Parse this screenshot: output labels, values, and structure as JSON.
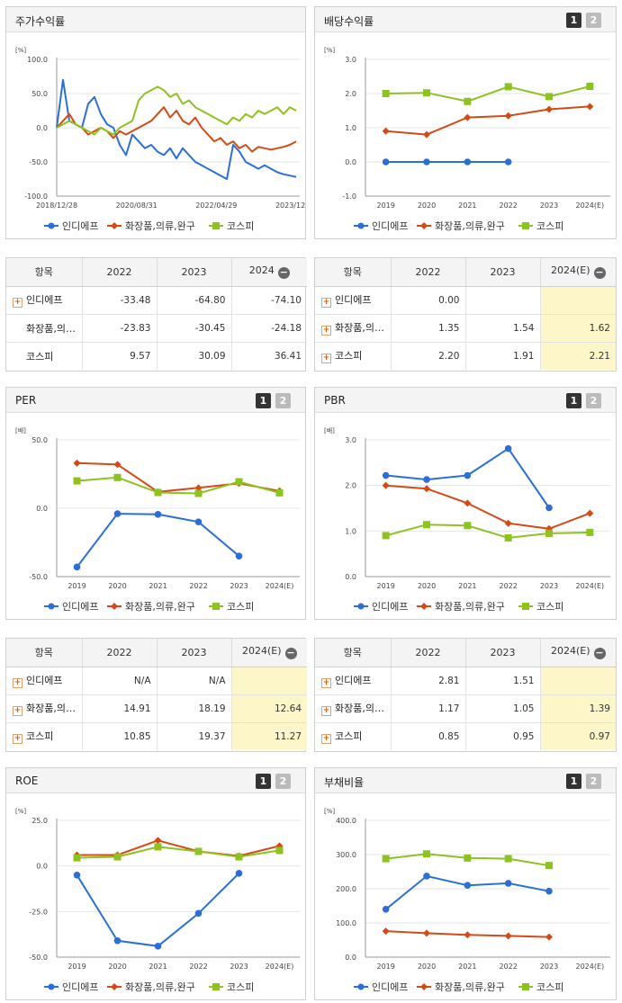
{
  "legend": [
    "인디에프",
    "화장품,의류,완구",
    "코스피"
  ],
  "colors": {
    "s0": "#2b6fd6",
    "s1": "#d44a16",
    "s2": "#8dc21f"
  },
  "pager": {
    "one": "1",
    "two": "2"
  },
  "charts": {
    "stock": {
      "title": "주가수익률",
      "chart_data": {
        "type": "line",
        "unit": "[%]",
        "y_ticks": [
          "100.0",
          "50.0",
          "0.0",
          "-50.0",
          "-100.0"
        ],
        "ylim": [
          -100,
          100
        ],
        "x_tick_labels": [
          "2018/12/28",
          "2020/08/31",
          "2022/04/29",
          "2023/12/28"
        ],
        "series": [
          {
            "name": "인디에프",
            "values": [
              0,
              70,
              10,
              5,
              0,
              35,
              45,
              20,
              5,
              0,
              -25,
              -40,
              -10,
              -20,
              -30,
              -25,
              -35,
              -40,
              -30,
              -45,
              -30,
              -40,
              -50,
              -55,
              -60,
              -65,
              -70,
              -75,
              -25,
              -35,
              -50,
              -55,
              -60,
              -55,
              -60,
              -65,
              -68,
              -70,
              -72
            ]
          },
          {
            "name": "화장품,의류,완구",
            "values": [
              0,
              10,
              20,
              5,
              0,
              -10,
              -5,
              0,
              -5,
              -15,
              -5,
              -10,
              -5,
              0,
              5,
              10,
              20,
              30,
              15,
              25,
              10,
              5,
              15,
              0,
              -10,
              -20,
              -15,
              -25,
              -20,
              -30,
              -25,
              -35,
              -28,
              -30,
              -32,
              -30,
              -28,
              -25,
              -20
            ]
          },
          {
            "name": "코스피",
            "values": [
              0,
              5,
              10,
              5,
              0,
              -5,
              -10,
              0,
              -5,
              -10,
              0,
              5,
              10,
              40,
              50,
              55,
              60,
              55,
              45,
              50,
              35,
              40,
              30,
              25,
              20,
              15,
              10,
              5,
              15,
              10,
              20,
              15,
              25,
              20,
              25,
              30,
              20,
              30,
              25
            ]
          }
        ]
      }
    },
    "dividend": {
      "title": "배당수익률",
      "chart_data": {
        "type": "line",
        "unit": "[%]",
        "y_ticks": [
          "3.0",
          "2.0",
          "1.0",
          "0.0",
          "-1.0"
        ],
        "ylim": [
          -1,
          3
        ],
        "categories": [
          "2019",
          "2020",
          "2021",
          "2022",
          "2023",
          "2024(E)"
        ],
        "series": [
          {
            "name": "인디에프",
            "values": [
              0.0,
              0.0,
              0.0,
              0.0,
              null,
              null
            ]
          },
          {
            "name": "화장품,의류,완구",
            "values": [
              0.9,
              0.8,
              1.3,
              1.35,
              1.54,
              1.62
            ]
          },
          {
            "name": "코스피",
            "values": [
              2.0,
              2.02,
              1.77,
              2.2,
              1.91,
              2.21
            ]
          }
        ]
      }
    },
    "per": {
      "title": "PER",
      "chart_data": {
        "type": "line",
        "unit": "[배]",
        "y_ticks": [
          "50.0",
          "0.0",
          "-50.0"
        ],
        "ylim": [
          -50,
          50
        ],
        "categories": [
          "2019",
          "2020",
          "2021",
          "2022",
          "2023",
          "2024(E)"
        ],
        "series": [
          {
            "name": "인디에프",
            "values": [
              -43,
              -4,
              -4.5,
              -10,
              -35,
              null
            ]
          },
          {
            "name": "화장품,의류,완구",
            "values": [
              33,
              32,
              12,
              14.91,
              18.19,
              12.64
            ]
          },
          {
            "name": "코스피",
            "values": [
              20,
              22.5,
              11.5,
              10.85,
              19.37,
              11.27
            ]
          }
        ]
      }
    },
    "pbr": {
      "title": "PBR",
      "chart_data": {
        "type": "line",
        "unit": "[배]",
        "y_ticks": [
          "3.0",
          "2.0",
          "1.0",
          "0.0"
        ],
        "ylim": [
          0,
          3
        ],
        "categories": [
          "2019",
          "2020",
          "2021",
          "2022",
          "2023",
          "2024(E)"
        ],
        "series": [
          {
            "name": "인디에프",
            "values": [
              2.22,
              2.13,
              2.22,
              2.81,
              1.51,
              null
            ]
          },
          {
            "name": "화장품,의류,완구",
            "values": [
              2.0,
              1.93,
              1.61,
              1.17,
              1.05,
              1.39
            ]
          },
          {
            "name": "코스피",
            "values": [
              0.9,
              1.14,
              1.12,
              0.85,
              0.95,
              0.97
            ]
          }
        ]
      }
    },
    "roe": {
      "title": "ROE",
      "chart_data": {
        "type": "line",
        "unit": "[%]",
        "y_ticks": [
          "25.0",
          "0.0",
          "-25.0",
          "-50.0"
        ],
        "ylim": [
          -50,
          25
        ],
        "categories": [
          "2019",
          "2020",
          "2021",
          "2022",
          "2023",
          "2024(E)"
        ],
        "series": [
          {
            "name": "인디에프",
            "values": [
              -5,
              -41,
              -44,
              -26,
              -4,
              null
            ]
          },
          {
            "name": "화장품,의류,완구",
            "values": [
              6,
              6,
              14,
              8,
              5.5,
              11
            ]
          },
          {
            "name": "코스피",
            "values": [
              4.5,
              5,
              10.5,
              8,
              5,
              8.5
            ]
          }
        ]
      }
    },
    "debt": {
      "title": "부채비율",
      "chart_data": {
        "type": "line",
        "unit": "[%]",
        "y_ticks": [
          "400.0",
          "300.0",
          "200.0",
          "100.0",
          "0.0"
        ],
        "ylim": [
          0,
          400
        ],
        "categories": [
          "2019",
          "2020",
          "2021",
          "2022",
          "2023",
          "2024(E)"
        ],
        "series": [
          {
            "name": "인디에프",
            "values": [
              140,
              237,
              210,
              216,
              193,
              null
            ]
          },
          {
            "name": "화장품,의류,완구",
            "values": [
              76,
              70,
              65,
              62,
              59,
              null
            ]
          },
          {
            "name": "코스피",
            "values": [
              288,
              302,
              290,
              288,
              268,
              null
            ]
          }
        ]
      }
    }
  },
  "tables": {
    "stock": {
      "headers": [
        "항목",
        "2022",
        "2023",
        "2024"
      ],
      "rows": [
        {
          "name": "인디에프",
          "plus": true,
          "cells": [
            "-33.48",
            "-64.80",
            "-74.10"
          ]
        },
        {
          "name": "화장품,의…",
          "plus": false,
          "cells": [
            "-23.83",
            "-30.45",
            "-24.18"
          ]
        },
        {
          "name": "코스피",
          "plus": false,
          "cells": [
            "9.57",
            "30.09",
            "36.41"
          ]
        }
      ]
    },
    "dividend": {
      "headers": [
        "항목",
        "2022",
        "2023",
        "2024(E)"
      ],
      "rows": [
        {
          "name": "인디에프",
          "plus": true,
          "cells": [
            "0.00",
            "",
            ""
          ]
        },
        {
          "name": "화장품,의…",
          "plus": true,
          "cells": [
            "1.35",
            "1.54",
            "1.62"
          ]
        },
        {
          "name": "코스피",
          "plus": true,
          "cells": [
            "2.20",
            "1.91",
            "2.21"
          ]
        }
      ]
    },
    "per": {
      "headers": [
        "항목",
        "2022",
        "2023",
        "2024(E)"
      ],
      "rows": [
        {
          "name": "인디에프",
          "plus": true,
          "cells": [
            "N/A",
            "N/A",
            ""
          ]
        },
        {
          "name": "화장품,의…",
          "plus": true,
          "cells": [
            "14.91",
            "18.19",
            "12.64"
          ]
        },
        {
          "name": "코스피",
          "plus": true,
          "cells": [
            "10.85",
            "19.37",
            "11.27"
          ]
        }
      ]
    },
    "pbr": {
      "headers": [
        "항목",
        "2022",
        "2023",
        "2024(E)"
      ],
      "rows": [
        {
          "name": "인디에프",
          "plus": true,
          "cells": [
            "2.81",
            "1.51",
            ""
          ]
        },
        {
          "name": "화장품,의…",
          "plus": true,
          "cells": [
            "1.17",
            "1.05",
            "1.39"
          ]
        },
        {
          "name": "코스피",
          "plus": true,
          "cells": [
            "0.85",
            "0.95",
            "0.97"
          ]
        }
      ]
    }
  }
}
